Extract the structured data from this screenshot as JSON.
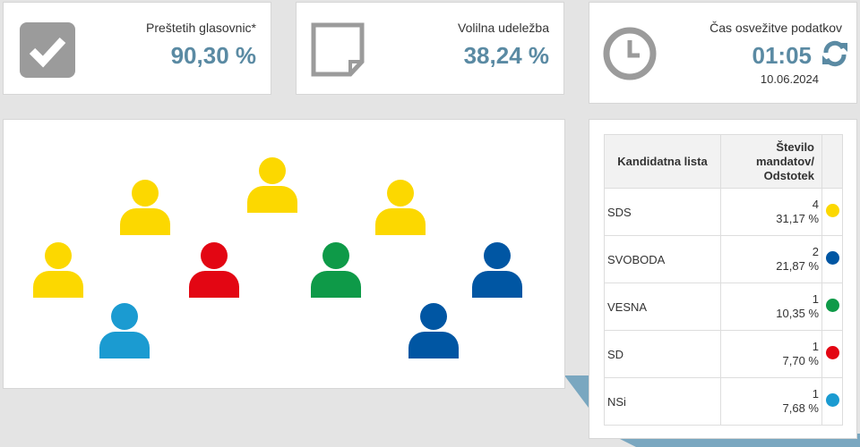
{
  "stats": [
    {
      "label": "Preštetih glasovnic*",
      "value": "90,30 %",
      "icon": "checkbox-icon"
    },
    {
      "label": "Volilna udeležba",
      "value": "38,24 %",
      "icon": "document-icon"
    },
    {
      "label": "Čas osvežitve podatkov",
      "value": "01:05",
      "date": "10.06.2024",
      "icon": "clock-icon"
    }
  ],
  "table": {
    "headers": [
      "Kandidatna lista",
      "Število mandatov/ Odstotek"
    ],
    "rows": [
      {
        "name": "SDS",
        "seats": "4",
        "percent": "31,17 %",
        "color": "#fcd800"
      },
      {
        "name": "SVOBODA",
        "seats": "2",
        "percent": "21,87 %",
        "color": "#0056a3"
      },
      {
        "name": "VESNA",
        "seats": "1",
        "percent": "10,35 %",
        "color": "#0e9a48"
      },
      {
        "name": "SD",
        "seats": "1",
        "percent": "7,70 %",
        "color": "#e30613"
      },
      {
        "name": "NSi",
        "seats": "1",
        "percent": "7,68 %",
        "color": "#1b9bd1"
      }
    ]
  },
  "seats": [
    "#fcd800",
    "#fcd800",
    "#fcd800",
    "#fcd800",
    "#e30613",
    "#0e9a48",
    "#0056a3",
    "#1b9bd1",
    "#0056a3"
  ],
  "accent": "#5a8aa3"
}
